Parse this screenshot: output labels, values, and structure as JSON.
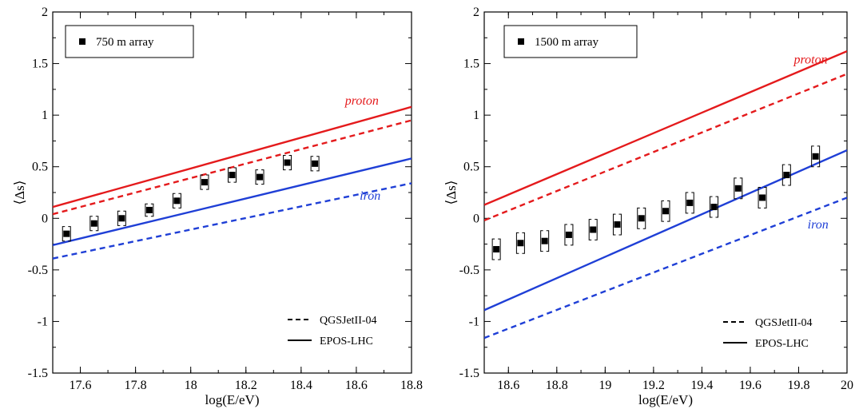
{
  "chart_data": [
    {
      "type": "scatter",
      "legend_label": "750 m array",
      "xlabel": "log(E/eV)",
      "ylabel": "⟨Δs⟩",
      "xlim": [
        17.5,
        18.8
      ],
      "ylim": [
        -1.5,
        2
      ],
      "xticks": [
        17.6,
        17.8,
        18,
        18.2,
        18.4,
        18.6,
        18.8
      ],
      "xtick_labels": [
        "17.6",
        "17.8",
        "18",
        "18.2",
        "18.4",
        "18.6",
        "18.8"
      ],
      "yticks": [
        -1.5,
        -1,
        -0.5,
        0,
        0.5,
        1,
        1.5,
        2
      ],
      "ytick_labels": [
        "-1.5",
        "-1",
        "-0.5",
        "0",
        "0.5",
        "1",
        "1.5",
        "2"
      ],
      "points": {
        "x": [
          17.55,
          17.65,
          17.75,
          17.85,
          17.95,
          18.05,
          18.15,
          18.25,
          18.35,
          18.45
        ],
        "y": [
          -0.15,
          -0.05,
          0.0,
          0.08,
          0.17,
          0.35,
          0.42,
          0.4,
          0.54,
          0.53
        ],
        "sys_low": [
          -0.22,
          -0.12,
          -0.07,
          0.02,
          0.1,
          0.28,
          0.35,
          0.33,
          0.47,
          0.46
        ],
        "sys_high": [
          -0.08,
          0.02,
          0.07,
          0.14,
          0.24,
          0.42,
          0.49,
          0.47,
          0.61,
          0.6
        ]
      },
      "lines": [
        {
          "model": "EPOS-LHC",
          "primary": "proton",
          "style": "solid",
          "color": "#e41a1c",
          "x": [
            17.5,
            18.8
          ],
          "y": [
            0.11,
            1.08
          ]
        },
        {
          "model": "QGSJetII-04",
          "primary": "proton",
          "style": "dashed",
          "color": "#e41a1c",
          "x": [
            17.5,
            18.8
          ],
          "y": [
            0.04,
            0.95
          ]
        },
        {
          "model": "EPOS-LHC",
          "primary": "iron",
          "style": "solid",
          "color": "#1f3fd6",
          "x": [
            17.5,
            18.8
          ],
          "y": [
            -0.26,
            0.58
          ]
        },
        {
          "model": "QGSJetII-04",
          "primary": "iron",
          "style": "dashed",
          "color": "#1f3fd6",
          "x": [
            17.5,
            18.8
          ],
          "y": [
            -0.39,
            0.34
          ]
        }
      ],
      "annotations": [
        {
          "text": "proton",
          "color": "#e41a1c",
          "x": 18.62,
          "y": 1.1
        },
        {
          "text": "iron",
          "color": "#1f3fd6",
          "x": 18.65,
          "y": 0.18
        }
      ],
      "model_legend": [
        {
          "label": "QGSJetII-04",
          "style": "dashed"
        },
        {
          "label": "EPOS-LHC",
          "style": "solid"
        }
      ]
    },
    {
      "type": "scatter",
      "legend_label": "1500 m array",
      "xlabel": "log(E/eV)",
      "ylabel": "⟨Δs⟩",
      "xlim": [
        18.5,
        20
      ],
      "ylim": [
        -1.5,
        2
      ],
      "xticks": [
        18.6,
        18.8,
        19,
        19.2,
        19.4,
        19.6,
        19.8,
        20
      ],
      "xtick_labels": [
        "18.6",
        "18.8",
        "19",
        "19.2",
        "19.4",
        "19.6",
        "19.8",
        "20"
      ],
      "yticks": [
        -1.5,
        -1,
        -0.5,
        0,
        0.5,
        1,
        1.5,
        2
      ],
      "ytick_labels": [
        "-1.5",
        "-1",
        "-0.5",
        "0",
        "0.5",
        "1",
        "1.5",
        "2"
      ],
      "points": {
        "x": [
          18.55,
          18.65,
          18.75,
          18.85,
          18.95,
          19.05,
          19.15,
          19.25,
          19.35,
          19.45,
          19.55,
          19.65,
          19.75,
          19.87
        ],
        "y": [
          -0.3,
          -0.24,
          -0.22,
          -0.16,
          -0.11,
          -0.06,
          0.0,
          0.07,
          0.15,
          0.11,
          0.29,
          0.2,
          0.42,
          0.6
        ],
        "sys_low": [
          -0.4,
          -0.34,
          -0.32,
          -0.26,
          -0.21,
          -0.16,
          -0.1,
          -0.03,
          0.05,
          0.01,
          0.19,
          0.1,
          0.32,
          0.5
        ],
        "sys_high": [
          -0.2,
          -0.14,
          -0.12,
          -0.06,
          -0.01,
          0.04,
          0.1,
          0.17,
          0.25,
          0.21,
          0.39,
          0.3,
          0.52,
          0.7
        ]
      },
      "lines": [
        {
          "model": "EPOS-LHC",
          "primary": "proton",
          "style": "solid",
          "color": "#e41a1c",
          "x": [
            18.5,
            20
          ],
          "y": [
            0.13,
            1.62
          ]
        },
        {
          "model": "QGSJetII-04",
          "primary": "proton",
          "style": "dashed",
          "color": "#e41a1c",
          "x": [
            18.5,
            20
          ],
          "y": [
            -0.02,
            1.4
          ]
        },
        {
          "model": "EPOS-LHC",
          "primary": "iron",
          "style": "solid",
          "color": "#1f3fd6",
          "x": [
            18.5,
            20
          ],
          "y": [
            -0.89,
            0.66
          ]
        },
        {
          "model": "QGSJetII-04",
          "primary": "iron",
          "style": "dashed",
          "color": "#1f3fd6",
          "x": [
            18.5,
            20
          ],
          "y": [
            -1.16,
            0.2
          ]
        }
      ],
      "annotations": [
        {
          "text": "proton",
          "color": "#e41a1c",
          "x": 19.85,
          "y": 1.5
        },
        {
          "text": "iron",
          "color": "#1f3fd6",
          "x": 19.88,
          "y": -0.1
        }
      ],
      "model_legend": [
        {
          "label": "QGSJetII-04",
          "style": "dashed"
        },
        {
          "label": "EPOS-LHC",
          "style": "solid"
        }
      ]
    }
  ]
}
